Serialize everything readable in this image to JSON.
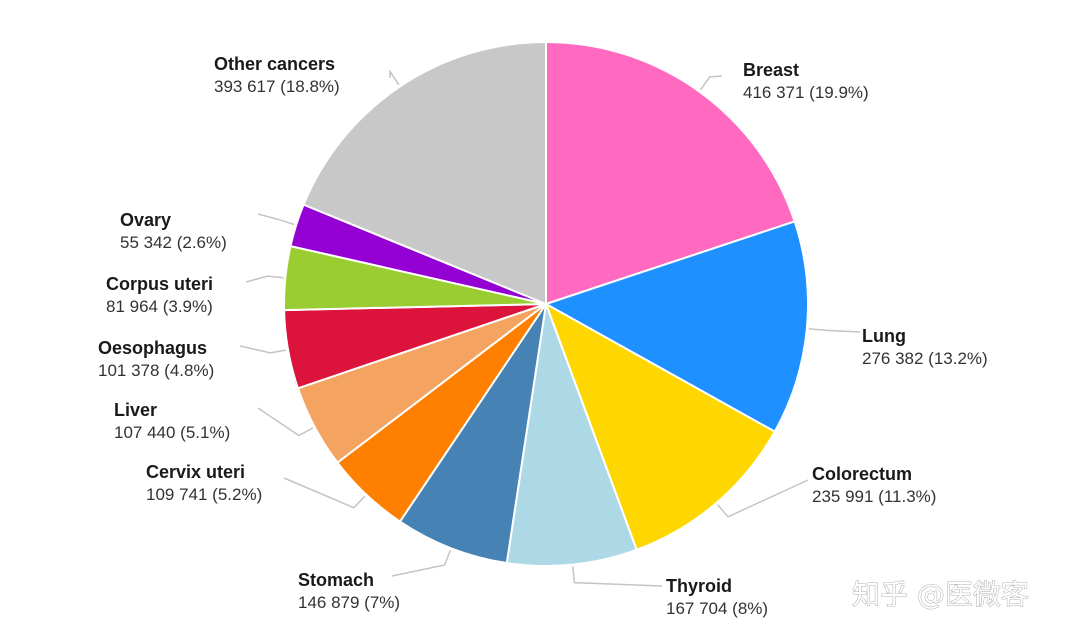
{
  "chart_data": {
    "type": "pie",
    "title": "",
    "slices": [
      {
        "name": "Breast",
        "value": 416371,
        "value_text": "416 371 (19.9%)",
        "percent": 19.9,
        "color": "#FF69C0"
      },
      {
        "name": "Lung",
        "value": 276382,
        "value_text": "276 382 (13.2%)",
        "percent": 13.2,
        "color": "#1E90FF"
      },
      {
        "name": "Colorectum",
        "value": 235991,
        "value_text": "235 991 (11.3%)",
        "percent": 11.3,
        "color": "#FFD700"
      },
      {
        "name": "Thyroid",
        "value": 167704,
        "value_text": "167 704 (8%)",
        "percent": 8,
        "color": "#ADD8E6"
      },
      {
        "name": "Stomach",
        "value": 146879,
        "value_text": "146 879 (7%)",
        "percent": 7,
        "color": "#4682B4"
      },
      {
        "name": "Cervix uteri",
        "value": 109741,
        "value_text": "109 741 (5.2%)",
        "percent": 5.2,
        "color": "#FF7F00"
      },
      {
        "name": "Liver",
        "value": 107440,
        "value_text": "107 440 (5.1%)",
        "percent": 5.1,
        "color": "#F4A460"
      },
      {
        "name": "Oesophagus",
        "value": 101378,
        "value_text": "101 378 (4.8%)",
        "percent": 4.8,
        "color": "#DC143C"
      },
      {
        "name": "Corpus uteri",
        "value": 81964,
        "value_text": "81 964 (3.9%)",
        "percent": 3.9,
        "color": "#9ACD32"
      },
      {
        "name": "Ovary",
        "value": 55342,
        "value_text": "55 342 (2.6%)",
        "percent": 2.6,
        "color": "#9400D3"
      },
      {
        "name": "Other cancers",
        "value": 393617,
        "value_text": "393 617 (18.8%)",
        "percent": 18.8,
        "color": "#C8C8C8"
      }
    ],
    "start_angle": "12 o'clock",
    "direction": "clockwise",
    "legend": "none"
  },
  "watermark": {
    "text": "知乎 @医微客"
  }
}
